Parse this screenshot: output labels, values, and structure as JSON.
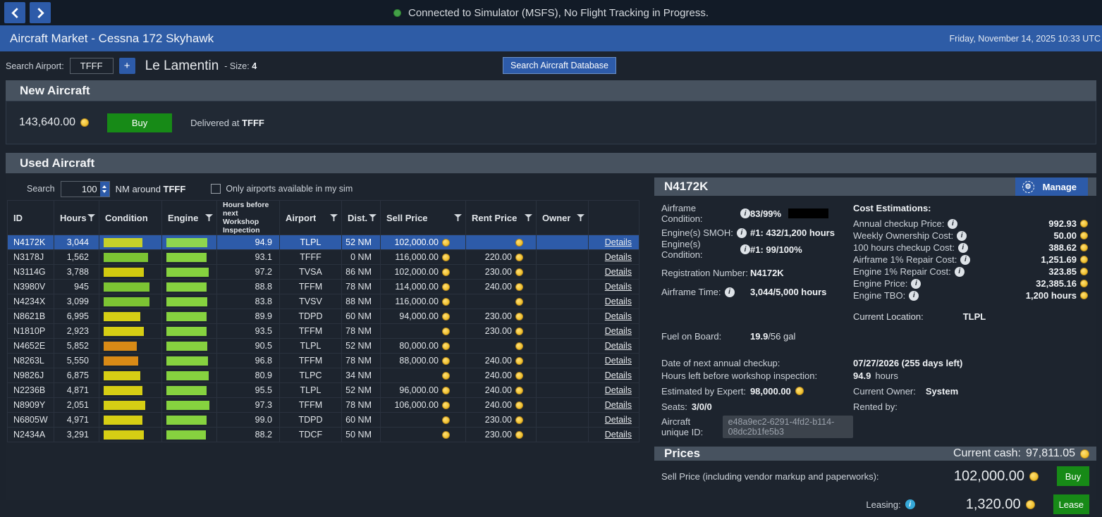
{
  "colors": {
    "accent_blue": "#2d5ba9",
    "section_header_gray": "#47525f",
    "buy_green": "#178a17",
    "coin_yellow": "#f2c434",
    "status_green": "#43a047",
    "selected_row_blue": "#2d5ba9"
  },
  "status_bar": {
    "message": "Connected to Simulator (MSFS), No Flight Tracking in Progress."
  },
  "title_bar": {
    "title": "Aircraft Market - Cessna 172 Skyhawk",
    "datetime": "Friday, November 14, 2025 10:33 UTC"
  },
  "airport_search": {
    "label": "Search Airport:",
    "value": "TFFF",
    "add_button": "+",
    "airport_name": "Le Lamentin",
    "size_label": "- Size:",
    "size_value": "4",
    "db_button": "Search Aircraft Database"
  },
  "new_aircraft": {
    "header": "New Aircraft",
    "price": "143,640.00",
    "buy_label": "Buy",
    "delivered_prefix": "Delivered at",
    "delivered_airport": "TFFF"
  },
  "used_aircraft": {
    "header": "Used Aircraft",
    "search_label": "Search",
    "radius_value": "100",
    "radius_suffix": "NM around",
    "radius_airport": "TFFF",
    "checkbox_label": "Only airports available in my sim",
    "checkbox_checked": false,
    "details_label": "Details",
    "columns": [
      {
        "label": "ID",
        "filter": false
      },
      {
        "label": "Hours",
        "filter": true
      },
      {
        "label": "Condition",
        "filter": false
      },
      {
        "label": "Engine",
        "filter": true
      },
      {
        "label": "Hours before next Workshop Inspection",
        "filter": false,
        "small": true
      },
      {
        "label": "Airport",
        "filter": true
      },
      {
        "label": "Dist.",
        "filter": true
      },
      {
        "label": "Sell Price",
        "filter": true
      },
      {
        "label": "Rent Price",
        "filter": true
      },
      {
        "label": "Owner",
        "filter": true
      },
      {
        "label": "",
        "filter": false
      }
    ],
    "rows": [
      {
        "id": "N4172K",
        "hours": "3,044",
        "cond_w": 55,
        "cond_color": "#c6d02a",
        "eng_w": 58,
        "eng_color": "#8ed64f",
        "insp": "94.9",
        "airport": "TLPL",
        "dist": "52 NM",
        "sell": "102,000.00",
        "rent": "",
        "owner": "",
        "selected": true
      },
      {
        "id": "N3178J",
        "hours": "1,562",
        "cond_w": 63,
        "cond_color": "#7cc433",
        "eng_w": 57,
        "eng_color": "#86d23f",
        "insp": "93.1",
        "airport": "TFFF",
        "dist": "0 NM",
        "sell": "116,000.00",
        "rent": "220.00",
        "owner": "",
        "selected": false
      },
      {
        "id": "N3114G",
        "hours": "3,788",
        "cond_w": 57,
        "cond_color": "#d2ca10",
        "eng_w": 60,
        "eng_color": "#86d23f",
        "insp": "97.2",
        "airport": "TVSA",
        "dist": "86 NM",
        "sell": "102,000.00",
        "rent": "230.00",
        "owner": "",
        "selected": false
      },
      {
        "id": "N3980V",
        "hours": "945",
        "cond_w": 65,
        "cond_color": "#7cc433",
        "eng_w": 57,
        "eng_color": "#86d23f",
        "insp": "88.8",
        "airport": "TFFM",
        "dist": "78 NM",
        "sell": "114,000.00",
        "rent": "240.00",
        "owner": "",
        "selected": false
      },
      {
        "id": "N4234X",
        "hours": "3,099",
        "cond_w": 65,
        "cond_color": "#7cc433",
        "eng_w": 58,
        "eng_color": "#86d23f",
        "insp": "83.8",
        "airport": "TVSV",
        "dist": "88 NM",
        "sell": "116,000.00",
        "rent": "",
        "owner": "",
        "selected": false
      },
      {
        "id": "N8621B",
        "hours": "6,995",
        "cond_w": 52,
        "cond_color": "#d6ce14",
        "eng_w": 57,
        "eng_color": "#86d23f",
        "insp": "89.9",
        "airport": "TDPD",
        "dist": "60 NM",
        "sell": "94,000.00",
        "rent": "230.00",
        "owner": "",
        "selected": false
      },
      {
        "id": "N1810P",
        "hours": "2,923",
        "cond_w": 57,
        "cond_color": "#d6ce14",
        "eng_w": 57,
        "eng_color": "#86d23f",
        "insp": "93.5",
        "airport": "TFFM",
        "dist": "78 NM",
        "sell": "",
        "rent": "230.00",
        "owner": "",
        "selected": false
      },
      {
        "id": "N4652E",
        "hours": "5,852",
        "cond_w": 47,
        "cond_color": "#d98a16",
        "eng_w": 58,
        "eng_color": "#86d23f",
        "insp": "90.5",
        "airport": "TLPL",
        "dist": "52 NM",
        "sell": "80,000.00",
        "rent": "",
        "owner": "",
        "selected": false
      },
      {
        "id": "N8263L",
        "hours": "5,550",
        "cond_w": 49,
        "cond_color": "#d98a16",
        "eng_w": 59,
        "eng_color": "#86d23f",
        "insp": "96.8",
        "airport": "TFFM",
        "dist": "78 NM",
        "sell": "88,000.00",
        "rent": "240.00",
        "owner": "",
        "selected": false
      },
      {
        "id": "N9826J",
        "hours": "6,875",
        "cond_w": 52,
        "cond_color": "#d6ce14",
        "eng_w": 60,
        "eng_color": "#86d23f",
        "insp": "80.9",
        "airport": "TLPC",
        "dist": "34 NM",
        "sell": "",
        "rent": "240.00",
        "owner": "",
        "selected": false
      },
      {
        "id": "N2236B",
        "hours": "4,871",
        "cond_w": 55,
        "cond_color": "#d6ce14",
        "eng_w": 57,
        "eng_color": "#86d23f",
        "insp": "95.5",
        "airport": "TLPL",
        "dist": "52 NM",
        "sell": "96,000.00",
        "rent": "240.00",
        "owner": "",
        "selected": false
      },
      {
        "id": "N8909Y",
        "hours": "2,051",
        "cond_w": 59,
        "cond_color": "#d6ce14",
        "eng_w": 61,
        "eng_color": "#86d23f",
        "insp": "97.3",
        "airport": "TFFM",
        "dist": "78 NM",
        "sell": "106,000.00",
        "rent": "240.00",
        "owner": "",
        "selected": false
      },
      {
        "id": "N6805W",
        "hours": "4,971",
        "cond_w": 55,
        "cond_color": "#d6ce14",
        "eng_w": 57,
        "eng_color": "#86d23f",
        "insp": "99.0",
        "airport": "TDPD",
        "dist": "60 NM",
        "sell": "",
        "rent": "230.00",
        "owner": "",
        "selected": false
      },
      {
        "id": "N2434A",
        "hours": "3,291",
        "cond_w": 57,
        "cond_color": "#d6ce14",
        "eng_w": 56,
        "eng_color": "#86d23f",
        "insp": "88.2",
        "airport": "TDCF",
        "dist": "50 NM",
        "sell": "",
        "rent": "230.00",
        "owner": "",
        "selected": false
      }
    ]
  },
  "detail_panel": {
    "registration": "N4172K",
    "manage_label": "Manage",
    "airframe_condition_label": "Airframe Condition:",
    "airframe_condition_value": "83/99%",
    "airframe_condition_pct": 84,
    "engines_smoh_label": "Engine(s) SMOH:",
    "engines_smoh_value": "#1: 432/1,200 hours",
    "engines_condition_label": "Engine(s) Condition:",
    "engines_condition_value": "#1: 99/100%",
    "registration_label": "Registration Number:",
    "registration_value": "N4172K",
    "airframe_time_label": "Airframe Time:",
    "airframe_time_value": "3,044/5,000 hours",
    "fuel_label": "Fuel on Board:",
    "fuel_value_bold": "19.9",
    "fuel_value_rest": "/56 gal",
    "cost_estimations": {
      "header": "Cost Estimations:",
      "rows": [
        {
          "label": "Annual checkup Price:",
          "info": true,
          "value": "992.93",
          "coin": true
        },
        {
          "label": "Weekly Ownership Cost:",
          "info": true,
          "value": "50.00",
          "coin": true
        },
        {
          "label": "100 hours checkup Cost:",
          "info": false,
          "value": "388.62",
          "coin": true
        },
        {
          "label": "Airframe 1% Repair Cost:",
          "info": false,
          "value": "1,251.69",
          "coin": true
        },
        {
          "label": "Engine 1% Repair Cost:",
          "info": false,
          "value": "323.85",
          "coin": true
        },
        {
          "label": "Engine Price:",
          "info": false,
          "value": "32,385.16",
          "coin": true
        },
        {
          "label": "Engine TBO:",
          "info": true,
          "value": "1,200 hours",
          "coin": false
        }
      ]
    },
    "current_location_label": "Current Location:",
    "current_location_value": "TLPL",
    "annual_label": "Date of next annual checkup:",
    "annual_value": "07/27/2026 (255 days left)",
    "workshop_label": "Hours left before workshop inspection:",
    "workshop_value_bold": "94.9",
    "workshop_value_rest": "hours",
    "expert_label": "Estimated by Expert:",
    "expert_value": "98,000.00",
    "owner_label": "Current Owner:",
    "owner_value": "System",
    "seats_label": "Seats:",
    "seats_value": "3/0/0",
    "rented_label": "Rented by:",
    "uid_label": "Aircraft unique ID:",
    "uid_value": "e48a9ec2-6291-4fd2-b114-08dc2b1fe5b3"
  },
  "prices": {
    "header": "Prices",
    "cash_label": "Current cash:",
    "cash_value": "97,811.05",
    "sell_label": "Sell Price (including vendor markup and paperworks):",
    "sell_value": "102,000.00",
    "buy_label": "Buy",
    "lease_label": "Leasing:",
    "lease_value": "1,320.00",
    "lease_button": "Lease"
  }
}
